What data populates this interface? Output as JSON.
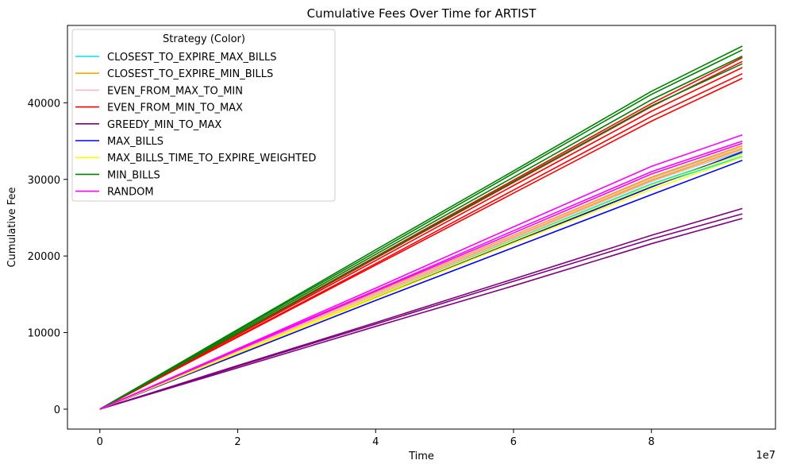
{
  "chart_data": {
    "type": "line",
    "title": "Cumulative Fees Over Time for ARTIST",
    "xlabel": "Time",
    "ylabel": "Cumulative Fee",
    "x_offset_label": "1e7",
    "xlim": [
      -0.47,
      9.8
    ],
    "ylim": [
      -2600,
      50100
    ],
    "x_ticks": [
      0,
      2,
      4,
      6,
      8
    ],
    "y_ticks": [
      0,
      10000,
      20000,
      30000,
      40000
    ],
    "grid": false,
    "legend": {
      "title": "Strategy (Color)",
      "position": "upper-left"
    },
    "x": [
      0,
      2,
      4,
      6,
      8,
      9.32
    ],
    "series": [
      {
        "name": "CLOSEST_TO_EXPIRE_MAX_BILLS",
        "color": "#00e5ee",
        "runs": [
          [
            0,
            7500,
            15000,
            22400,
            29800,
            33700
          ],
          [
            0,
            7300,
            14600,
            21900,
            29100,
            33000
          ],
          [
            0,
            7600,
            15200,
            22700,
            30200,
            34200
          ],
          [
            0,
            7400,
            14800,
            22100,
            29400,
            33400
          ]
        ]
      },
      {
        "name": "CLOSEST_TO_EXPIRE_MIN_BILLS",
        "color": "#ffa500",
        "runs": [
          [
            0,
            7600,
            15200,
            22700,
            30300,
            34400
          ],
          [
            0,
            7500,
            15000,
            22400,
            29900,
            34000
          ]
        ]
      },
      {
        "name": "EVEN_FROM_MAX_TO_MIN",
        "color": "#ffb6c1",
        "runs": [
          [
            0,
            7600,
            15100,
            22600,
            30100,
            34200
          ],
          [
            0,
            7500,
            14900,
            22300,
            29700,
            33800
          ]
        ]
      },
      {
        "name": "EVEN_FROM_MIN_TO_MAX",
        "color": "#ff0000",
        "runs": [
          [
            0,
            9400,
            18800,
            28200,
            37600,
            43200
          ],
          [
            0,
            9500,
            19000,
            28600,
            38200,
            43800
          ],
          [
            0,
            9700,
            19400,
            29200,
            38900,
            44600
          ],
          [
            0,
            9800,
            19700,
            29600,
            39500,
            45400
          ],
          [
            0,
            9900,
            19900,
            29900,
            39900,
            45900
          ]
        ]
      },
      {
        "name": "GREEDY_MIN_TO_MAX",
        "color": "#800080",
        "runs": [
          [
            0,
            5400,
            10800,
            16100,
            21600,
            24900
          ],
          [
            0,
            5600,
            11100,
            16700,
            22200,
            25500
          ],
          [
            0,
            5700,
            11300,
            17000,
            22700,
            26200
          ]
        ]
      },
      {
        "name": "MAX_BILLS",
        "color": "#0000ff",
        "runs": [
          [
            0,
            7100,
            14200,
            21100,
            28000,
            32500
          ],
          [
            0,
            7300,
            14600,
            21800,
            29000,
            33600
          ]
        ]
      },
      {
        "name": "MAX_BILLS_TIME_TO_EXPIRE_WEIGHTED",
        "color": "#ffff00",
        "runs": [
          [
            0,
            7300,
            14500,
            21700,
            28700,
            32900
          ],
          [
            0,
            7400,
            14700,
            22000,
            29200,
            33300
          ]
        ]
      },
      {
        "name": "MIN_BILLS",
        "color": "#008000",
        "runs": [
          [
            0,
            9900,
            19800,
            29700,
            39600,
            45100
          ],
          [
            0,
            10100,
            20200,
            30300,
            40400,
            46100
          ],
          [
            0,
            10300,
            20500,
            30800,
            41100,
            46900
          ],
          [
            0,
            10400,
            20800,
            31100,
            41500,
            47400
          ]
        ]
      },
      {
        "name": "RANDOM",
        "color": "#ff00ff",
        "runs": [
          [
            0,
            7800,
            15500,
            23300,
            31000,
            35000
          ],
          [
            0,
            7900,
            15800,
            23800,
            31700,
            35800
          ],
          [
            0,
            7700,
            15400,
            23000,
            30700,
            34700
          ]
        ]
      }
    ]
  }
}
